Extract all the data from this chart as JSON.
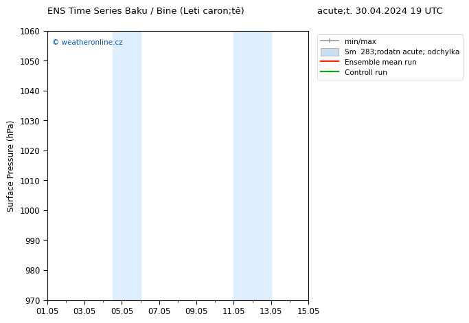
{
  "title_left": "ENS Time Series Baku / Bine (Leti caron;tě)",
  "title_right": "acute;t. 30.04.2024 19 UTC",
  "ylabel": "Surface Pressure (hPa)",
  "ylim": [
    970,
    1060
  ],
  "yticks": [
    970,
    980,
    990,
    1000,
    1010,
    1020,
    1030,
    1040,
    1050,
    1060
  ],
  "xlim_start": 0,
  "xlim_end": 14,
  "xtick_labels": [
    "01.05",
    "03.05",
    "05.05",
    "07.05",
    "09.05",
    "11.05",
    "13.05",
    "15.05"
  ],
  "xtick_positions": [
    0,
    2,
    4,
    6,
    8,
    10,
    12,
    14
  ],
  "shaded_regions": [
    {
      "xmin": 3.5,
      "xmax": 5.0,
      "color": "#ddeeff"
    },
    {
      "xmin": 10.0,
      "xmax": 12.0,
      "color": "#ddeeff"
    }
  ],
  "watermark": "© weatheronline.cz",
  "watermark_color": "#0055cc",
  "legend_labels": [
    "min/max",
    "Sm  283;rodatn acute; odchylka",
    "Ensemble mean run",
    "Controll run"
  ],
  "legend_colors": [
    "#999999",
    "#c8dff0",
    "#ff0000",
    "#00aa00"
  ],
  "bg_color": "#ffffff",
  "plot_bg_color": "#ffffff",
  "border_color": "#000000",
  "tick_color": "#000000",
  "font_size": 8.5,
  "title_font_size": 9.5
}
